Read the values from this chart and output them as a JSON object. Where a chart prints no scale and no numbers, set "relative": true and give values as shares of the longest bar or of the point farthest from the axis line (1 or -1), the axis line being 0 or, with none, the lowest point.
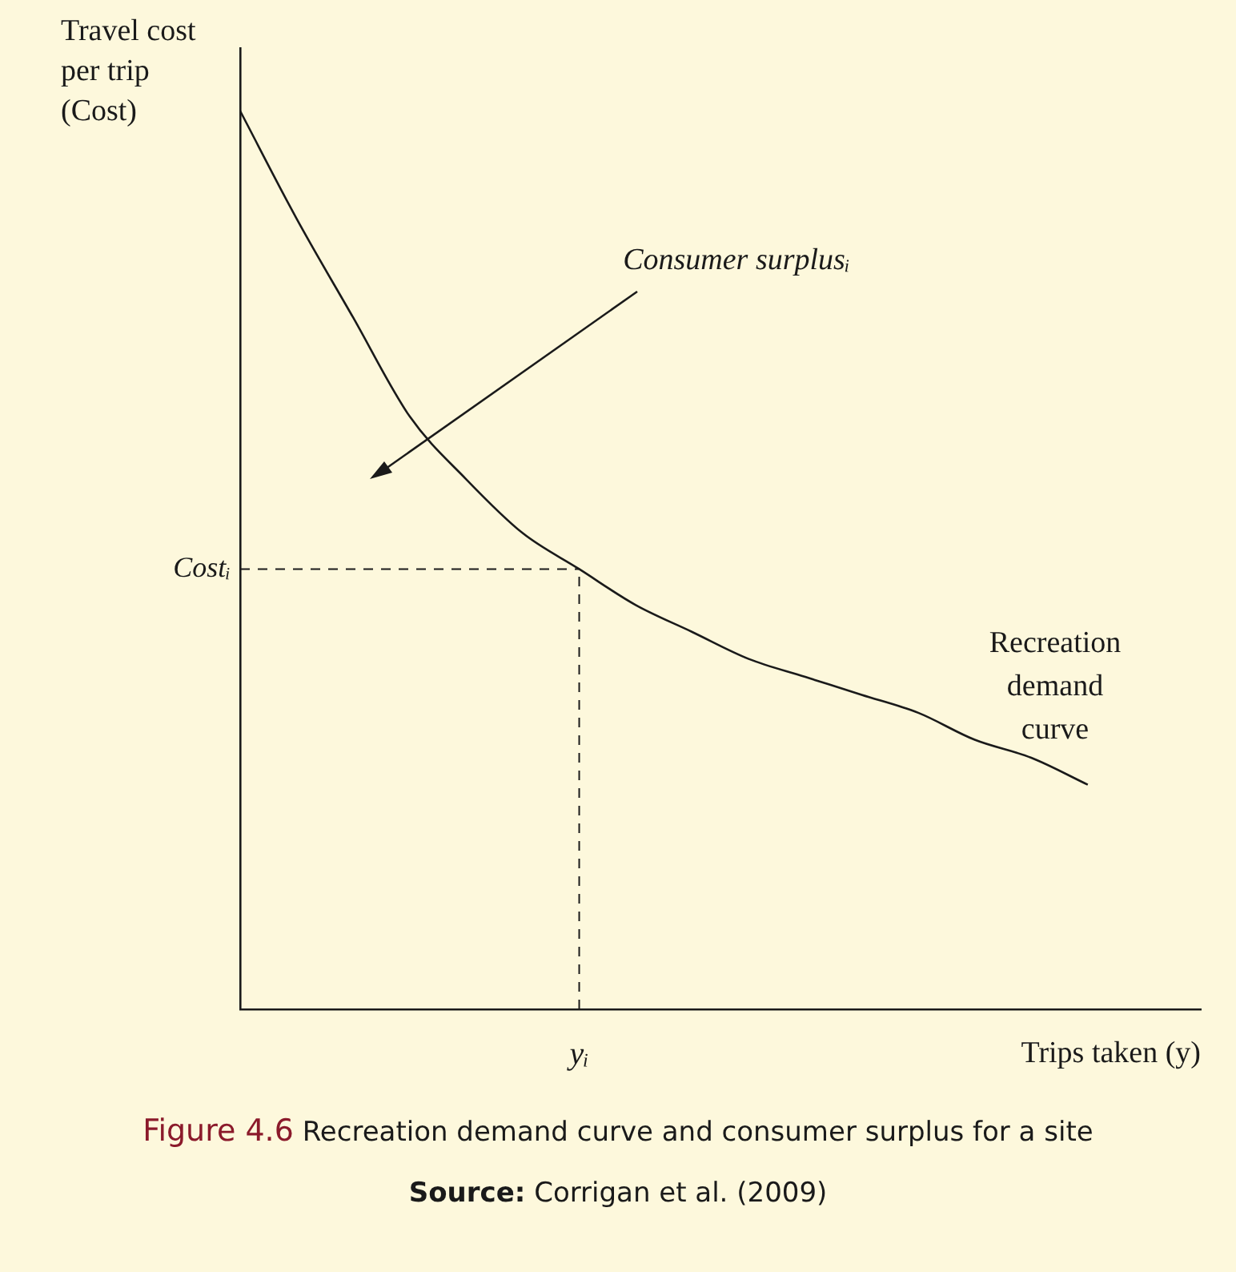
{
  "chart_data": {
    "type": "line",
    "title": "Figure 4.6 Recreation demand curve and consumer surplus for a site",
    "xlabel": "Trips taken (y)",
    "ylabel": "Travel cost per trip (Cost)",
    "relative": true,
    "categories": [
      null,
      null,
      null,
      null,
      null,
      null,
      null,
      null,
      null,
      null,
      null,
      null,
      null,
      null,
      null,
      null,
      null,
      null
    ],
    "series": [
      {
        "name": "Recreation demand curve",
        "color": "#1a1a1a",
        "values": [
          1.0,
          0.88,
          0.77,
          0.66,
          0.59,
          0.53,
          0.49,
          0.45,
          0.42,
          0.39,
          0.37,
          0.35,
          0.33,
          0.3,
          0.28,
          0.25,
          null,
          null
        ]
      }
    ],
    "ref_lines": [
      {
        "axis": "y",
        "value": 0.49,
        "label": "Costᵢ",
        "line_style": "dashed"
      },
      {
        "axis": "x",
        "value": "yᵢ",
        "line_style": "dashed"
      }
    ],
    "annotations": [
      "Consumer surplusᵢ",
      "Source: Corrigan et al. (2009)"
    ],
    "grid": false,
    "legend": false,
    "marker": "none",
    "line_style": "solid"
  }
}
